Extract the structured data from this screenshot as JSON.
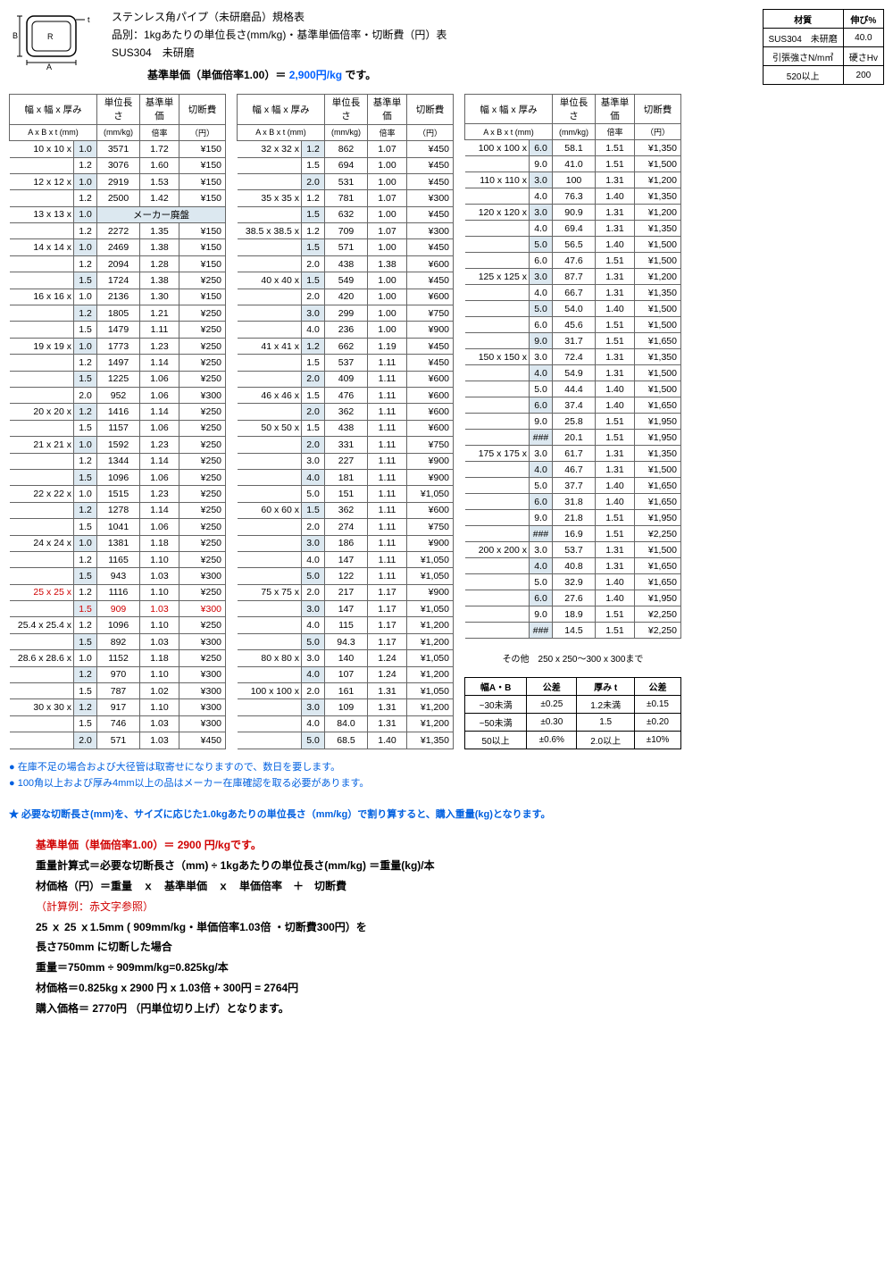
{
  "title1": "ステンレス角パイプ（未研磨品）規格表",
  "title2": "品別：1kgあたりの単位長さ(mm/kg)・基準単価倍率・切断費（円）表",
  "title3": "SUS304　未研磨",
  "baseprice_label": "基準単価（単価倍率1.00）＝",
  "baseprice_value": "2,900円/kg",
  "baseprice_suffix": "です。",
  "mat": {
    "h1": "材質",
    "h2": "伸び%",
    "r1a": "SUS304　未研磨",
    "r1b": "40.0",
    "r2a": "引張強さN/m㎡",
    "r2b": "硬さHv",
    "r3a": "520以上",
    "r3b": "200"
  },
  "col_headers": {
    "h1": "幅 x 幅 x 厚み",
    "h2": "単位長さ",
    "h3": "基準単価",
    "h4": "切断費",
    "s1": "A x B x t (mm)",
    "s2": "(mm/kg)",
    "s3": "倍率",
    "s4": "（円）"
  },
  "maker_disc": "メーカー廃盤",
  "table1": [
    {
      "dim": "10 x 10 x",
      "t": "1.0",
      "len": "3571",
      "rate": "1.72",
      "cut": "¥150",
      "sh": 1,
      "first": 1
    },
    {
      "dim": "",
      "t": "1.2",
      "len": "3076",
      "rate": "1.60",
      "cut": "¥150"
    },
    {
      "dim": "12 x 12 x",
      "t": "1.0",
      "len": "2919",
      "rate": "1.53",
      "cut": "¥150",
      "sh": 1,
      "first": 1
    },
    {
      "dim": "",
      "t": "1.2",
      "len": "2500",
      "rate": "1.42",
      "cut": "¥150"
    },
    {
      "dim": "13 x 13 x",
      "t": "1.0",
      "disc": 1,
      "sh": 1,
      "first": 1
    },
    {
      "dim": "",
      "t": "1.2",
      "len": "2272",
      "rate": "1.35",
      "cut": "¥150"
    },
    {
      "dim": "14 x 14 x",
      "t": "1.0",
      "len": "2469",
      "rate": "1.38",
      "cut": "¥150",
      "sh": 1,
      "first": 1
    },
    {
      "dim": "",
      "t": "1.2",
      "len": "2094",
      "rate": "1.28",
      "cut": "¥150"
    },
    {
      "dim": "",
      "t": "1.5",
      "len": "1724",
      "rate": "1.38",
      "cut": "¥250",
      "sh": 1
    },
    {
      "dim": "16 x 16 x",
      "t": "1.0",
      "len": "2136",
      "rate": "1.30",
      "cut": "¥150",
      "first": 1
    },
    {
      "dim": "",
      "t": "1.2",
      "len": "1805",
      "rate": "1.21",
      "cut": "¥250",
      "sh": 1
    },
    {
      "dim": "",
      "t": "1.5",
      "len": "1479",
      "rate": "1.11",
      "cut": "¥250"
    },
    {
      "dim": "19 x 19 x",
      "t": "1.0",
      "len": "1773",
      "rate": "1.23",
      "cut": "¥250",
      "sh": 1,
      "first": 1
    },
    {
      "dim": "",
      "t": "1.2",
      "len": "1497",
      "rate": "1.14",
      "cut": "¥250"
    },
    {
      "dim": "",
      "t": "1.5",
      "len": "1225",
      "rate": "1.06",
      "cut": "¥250",
      "sh": 1
    },
    {
      "dim": "",
      "t": "2.0",
      "len": "952",
      "rate": "1.06",
      "cut": "¥300"
    },
    {
      "dim": "20 x 20 x",
      "t": "1.2",
      "len": "1416",
      "rate": "1.14",
      "cut": "¥250",
      "sh": 1,
      "first": 1
    },
    {
      "dim": "",
      "t": "1.5",
      "len": "1157",
      "rate": "1.06",
      "cut": "¥250"
    },
    {
      "dim": "21 x 21 x",
      "t": "1.0",
      "len": "1592",
      "rate": "1.23",
      "cut": "¥250",
      "sh": 1,
      "first": 1
    },
    {
      "dim": "",
      "t": "1.2",
      "len": "1344",
      "rate": "1.14",
      "cut": "¥250"
    },
    {
      "dim": "",
      "t": "1.5",
      "len": "1096",
      "rate": "1.06",
      "cut": "¥250",
      "sh": 1
    },
    {
      "dim": "22 x 22 x",
      "t": "1.0",
      "len": "1515",
      "rate": "1.23",
      "cut": "¥250",
      "first": 1
    },
    {
      "dim": "",
      "t": "1.2",
      "len": "1278",
      "rate": "1.14",
      "cut": "¥250",
      "sh": 1
    },
    {
      "dim": "",
      "t": "1.5",
      "len": "1041",
      "rate": "1.06",
      "cut": "¥250"
    },
    {
      "dim": "24 x 24 x",
      "t": "1.0",
      "len": "1381",
      "rate": "1.18",
      "cut": "¥250",
      "sh": 1,
      "first": 1
    },
    {
      "dim": "",
      "t": "1.2",
      "len": "1165",
      "rate": "1.10",
      "cut": "¥250"
    },
    {
      "dim": "",
      "t": "1.5",
      "len": "943",
      "rate": "1.03",
      "cut": "¥300",
      "sh": 1
    },
    {
      "dim": "25 x 25 x",
      "t": "1.2",
      "len": "1116",
      "rate": "1.10",
      "cut": "¥250",
      "red": 1,
      "first": 1
    },
    {
      "dim": "",
      "t": "1.5",
      "len": "909",
      "rate": "1.03",
      "cut": "¥300",
      "sh": 1,
      "red": 2
    },
    {
      "dim": "25.4 x 25.4 x",
      "t": "1.2",
      "len": "1096",
      "rate": "1.10",
      "cut": "¥250",
      "first": 1
    },
    {
      "dim": "",
      "t": "1.5",
      "len": "892",
      "rate": "1.03",
      "cut": "¥300",
      "sh": 1
    },
    {
      "dim": "28.6 x 28.6 x",
      "t": "1.0",
      "len": "1152",
      "rate": "1.18",
      "cut": "¥250",
      "first": 1
    },
    {
      "dim": "",
      "t": "1.2",
      "len": "970",
      "rate": "1.10",
      "cut": "¥300",
      "sh": 1
    },
    {
      "dim": "",
      "t": "1.5",
      "len": "787",
      "rate": "1.02",
      "cut": "¥300"
    },
    {
      "dim": "30 x 30 x",
      "t": "1.2",
      "len": "917",
      "rate": "1.10",
      "cut": "¥300",
      "sh": 1,
      "first": 1
    },
    {
      "dim": "",
      "t": "1.5",
      "len": "746",
      "rate": "1.03",
      "cut": "¥300"
    },
    {
      "dim": "",
      "t": "2.0",
      "len": "571",
      "rate": "1.03",
      "cut": "¥450",
      "sh": 1
    }
  ],
  "table2": [
    {
      "dim": "32 x 32 x",
      "t": "1.2",
      "len": "862",
      "rate": "1.07",
      "cut": "¥450",
      "sh": 1,
      "first": 1
    },
    {
      "dim": "",
      "t": "1.5",
      "len": "694",
      "rate": "1.00",
      "cut": "¥450"
    },
    {
      "dim": "",
      "t": "2.0",
      "len": "531",
      "rate": "1.00",
      "cut": "¥450",
      "sh": 1
    },
    {
      "dim": "35 x 35 x",
      "t": "1.2",
      "len": "781",
      "rate": "1.07",
      "cut": "¥300",
      "first": 1
    },
    {
      "dim": "",
      "t": "1.5",
      "len": "632",
      "rate": "1.00",
      "cut": "¥450",
      "sh": 1
    },
    {
      "dim": "38.5 x 38.5 x",
      "t": "1.2",
      "len": "709",
      "rate": "1.07",
      "cut": "¥300",
      "first": 1
    },
    {
      "dim": "",
      "t": "1.5",
      "len": "571",
      "rate": "1.00",
      "cut": "¥450",
      "sh": 1
    },
    {
      "dim": "",
      "t": "2.0",
      "len": "438",
      "rate": "1.38",
      "cut": "¥600"
    },
    {
      "dim": "40 x 40 x",
      "t": "1.5",
      "len": "549",
      "rate": "1.00",
      "cut": "¥450",
      "sh": 1,
      "first": 1
    },
    {
      "dim": "",
      "t": "2.0",
      "len": "420",
      "rate": "1.00",
      "cut": "¥600"
    },
    {
      "dim": "",
      "t": "3.0",
      "len": "299",
      "rate": "1.00",
      "cut": "¥750",
      "sh": 1
    },
    {
      "dim": "",
      "t": "4.0",
      "len": "236",
      "rate": "1.00",
      "cut": "¥900"
    },
    {
      "dim": "41 x 41 x",
      "t": "1.2",
      "len": "662",
      "rate": "1.19",
      "cut": "¥450",
      "sh": 1,
      "first": 1
    },
    {
      "dim": "",
      "t": "1.5",
      "len": "537",
      "rate": "1.11",
      "cut": "¥450"
    },
    {
      "dim": "",
      "t": "2.0",
      "len": "409",
      "rate": "1.11",
      "cut": "¥600",
      "sh": 1
    },
    {
      "dim": "46 x 46 x",
      "t": "1.5",
      "len": "476",
      "rate": "1.11",
      "cut": "¥600",
      "first": 1
    },
    {
      "dim": "",
      "t": "2.0",
      "len": "362",
      "rate": "1.11",
      "cut": "¥600",
      "sh": 1
    },
    {
      "dim": "50 x 50 x",
      "t": "1.5",
      "len": "438",
      "rate": "1.11",
      "cut": "¥600",
      "first": 1
    },
    {
      "dim": "",
      "t": "2.0",
      "len": "331",
      "rate": "1.11",
      "cut": "¥750",
      "sh": 1
    },
    {
      "dim": "",
      "t": "3.0",
      "len": "227",
      "rate": "1.11",
      "cut": "¥900"
    },
    {
      "dim": "",
      "t": "4.0",
      "len": "181",
      "rate": "1.11",
      "cut": "¥900",
      "sh": 1
    },
    {
      "dim": "",
      "t": "5.0",
      "len": "151",
      "rate": "1.11",
      "cut": "¥1,050"
    },
    {
      "dim": "60 x 60 x",
      "t": "1.5",
      "len": "362",
      "rate": "1.11",
      "cut": "¥600",
      "sh": 1,
      "first": 1
    },
    {
      "dim": "",
      "t": "2.0",
      "len": "274",
      "rate": "1.11",
      "cut": "¥750"
    },
    {
      "dim": "",
      "t": "3.0",
      "len": "186",
      "rate": "1.11",
      "cut": "¥900",
      "sh": 1
    },
    {
      "dim": "",
      "t": "4.0",
      "len": "147",
      "rate": "1.11",
      "cut": "¥1,050"
    },
    {
      "dim": "",
      "t": "5.0",
      "len": "122",
      "rate": "1.11",
      "cut": "¥1,050",
      "sh": 1
    },
    {
      "dim": "75 x 75 x",
      "t": "2.0",
      "len": "217",
      "rate": "1.17",
      "cut": "¥900",
      "first": 1
    },
    {
      "dim": "",
      "t": "3.0",
      "len": "147",
      "rate": "1.17",
      "cut": "¥1,050",
      "sh": 1
    },
    {
      "dim": "",
      "t": "4.0",
      "len": "115",
      "rate": "1.17",
      "cut": "¥1,200"
    },
    {
      "dim": "",
      "t": "5.0",
      "len": "94.3",
      "rate": "1.17",
      "cut": "¥1,200",
      "sh": 1
    },
    {
      "dim": "80 x 80 x",
      "t": "3.0",
      "len": "140",
      "rate": "1.24",
      "cut": "¥1,050",
      "first": 1
    },
    {
      "dim": "",
      "t": "4.0",
      "len": "107",
      "rate": "1.24",
      "cut": "¥1,200",
      "sh": 1
    },
    {
      "dim": "100 x 100 x",
      "t": "2.0",
      "len": "161",
      "rate": "1.31",
      "cut": "¥1,050",
      "first": 1
    },
    {
      "dim": "",
      "t": "3.0",
      "len": "109",
      "rate": "1.31",
      "cut": "¥1,200",
      "sh": 1
    },
    {
      "dim": "",
      "t": "4.0",
      "len": "84.0",
      "rate": "1.31",
      "cut": "¥1,200"
    },
    {
      "dim": "",
      "t": "5.0",
      "len": "68.5",
      "rate": "1.40",
      "cut": "¥1,350",
      "sh": 1
    }
  ],
  "table3": [
    {
      "dim": "100 x 100 x",
      "t": "6.0",
      "len": "58.1",
      "rate": "1.51",
      "cut": "¥1,350",
      "sh": 1,
      "first": 1
    },
    {
      "dim": "",
      "t": "9.0",
      "len": "41.0",
      "rate": "1.51",
      "cut": "¥1,500"
    },
    {
      "dim": "110 x 110 x",
      "t": "3.0",
      "len": "100",
      "rate": "1.31",
      "cut": "¥1,200",
      "sh": 1,
      "first": 1
    },
    {
      "dim": "",
      "t": "4.0",
      "len": "76.3",
      "rate": "1.40",
      "cut": "¥1,350"
    },
    {
      "dim": "120 x 120 x",
      "t": "3.0",
      "len": "90.9",
      "rate": "1.31",
      "cut": "¥1,200",
      "sh": 1,
      "first": 1
    },
    {
      "dim": "",
      "t": "4.0",
      "len": "69.4",
      "rate": "1.31",
      "cut": "¥1,350"
    },
    {
      "dim": "",
      "t": "5.0",
      "len": "56.5",
      "rate": "1.40",
      "cut": "¥1,500",
      "sh": 1
    },
    {
      "dim": "",
      "t": "6.0",
      "len": "47.6",
      "rate": "1.51",
      "cut": "¥1,500"
    },
    {
      "dim": "125 x 125 x",
      "t": "3.0",
      "len": "87.7",
      "rate": "1.31",
      "cut": "¥1,200",
      "sh": 1,
      "first": 1
    },
    {
      "dim": "",
      "t": "4.0",
      "len": "66.7",
      "rate": "1.31",
      "cut": "¥1,350"
    },
    {
      "dim": "",
      "t": "5.0",
      "len": "54.0",
      "rate": "1.40",
      "cut": "¥1,500",
      "sh": 1
    },
    {
      "dim": "",
      "t": "6.0",
      "len": "45.6",
      "rate": "1.51",
      "cut": "¥1,500"
    },
    {
      "dim": "",
      "t": "9.0",
      "len": "31.7",
      "rate": "1.51",
      "cut": "¥1,650",
      "sh": 1
    },
    {
      "dim": "150 x 150 x",
      "t": "3.0",
      "len": "72.4",
      "rate": "1.31",
      "cut": "¥1,350",
      "first": 1
    },
    {
      "dim": "",
      "t": "4.0",
      "len": "54.9",
      "rate": "1.31",
      "cut": "¥1,500",
      "sh": 1
    },
    {
      "dim": "",
      "t": "5.0",
      "len": "44.4",
      "rate": "1.40",
      "cut": "¥1,500"
    },
    {
      "dim": "",
      "t": "6.0",
      "len": "37.4",
      "rate": "1.40",
      "cut": "¥1,650",
      "sh": 1
    },
    {
      "dim": "",
      "t": "9.0",
      "len": "25.8",
      "rate": "1.51",
      "cut": "¥1,950"
    },
    {
      "dim": "",
      "t": "###",
      "len": "20.1",
      "rate": "1.51",
      "cut": "¥1,950",
      "sh": 1
    },
    {
      "dim": "175 x 175 x",
      "t": "3.0",
      "len": "61.7",
      "rate": "1.31",
      "cut": "¥1,350",
      "first": 1
    },
    {
      "dim": "",
      "t": "4.0",
      "len": "46.7",
      "rate": "1.31",
      "cut": "¥1,500",
      "sh": 1
    },
    {
      "dim": "",
      "t": "5.0",
      "len": "37.7",
      "rate": "1.40",
      "cut": "¥1,650"
    },
    {
      "dim": "",
      "t": "6.0",
      "len": "31.8",
      "rate": "1.40",
      "cut": "¥1,650",
      "sh": 1
    },
    {
      "dim": "",
      "t": "9.0",
      "len": "21.8",
      "rate": "1.51",
      "cut": "¥1,950"
    },
    {
      "dim": "",
      "t": "###",
      "len": "16.9",
      "rate": "1.51",
      "cut": "¥2,250",
      "sh": 1
    },
    {
      "dim": "200 x 200 x",
      "t": "3.0",
      "len": "53.7",
      "rate": "1.31",
      "cut": "¥1,500",
      "first": 1
    },
    {
      "dim": "",
      "t": "4.0",
      "len": "40.8",
      "rate": "1.31",
      "cut": "¥1,650",
      "sh": 1
    },
    {
      "dim": "",
      "t": "5.0",
      "len": "32.9",
      "rate": "1.40",
      "cut": "¥1,650"
    },
    {
      "dim": "",
      "t": "6.0",
      "len": "27.6",
      "rate": "1.40",
      "cut": "¥1,950",
      "sh": 1
    },
    {
      "dim": "",
      "t": "9.0",
      "len": "18.9",
      "rate": "1.51",
      "cut": "¥2,250"
    },
    {
      "dim": "",
      "t": "###",
      "len": "14.5",
      "rate": "1.51",
      "cut": "¥2,250",
      "sh": 1
    }
  ],
  "other_note": "その他　250 x 250～300 x 300まで",
  "tol": {
    "h1": "幅A・B",
    "h2": "公差",
    "h3": "厚み t",
    "h4": "公差",
    "rows": [
      [
        "~30未満",
        "±0.25",
        "1.2未満",
        "±0.15"
      ],
      [
        "~50未満",
        "±0.30",
        "1.5",
        "±0.20"
      ],
      [
        "50以上",
        "±0.6%",
        "2.0以上",
        "±10%"
      ]
    ]
  },
  "note1": "● 在庫不足の場合および大径管は取寄せになりますので、数日を要します。",
  "note2": "● 100角以上および厚み4mm以上の品はメーカー在庫確認を取る必要があります。",
  "note3": "★ 必要な切断長さ(mm)を、サイズに応じた1.0kgあたりの単位長さ（mm/kg）で割り算すると、購入重量(kg)となります。",
  "calc1": "基準単価（単価倍率1.00）＝ 2900 円/kgです。",
  "calc2": "重量計算式＝必要な切断長さ（mm) ÷ 1kgあたりの単位長さ(mm/kg) ＝重量(kg)/本",
  "calc3": "材価格（円）＝重量　ｘ　基準単価　ｘ　単価倍率　＋　切断費",
  "calc4": "（計算例：赤文字参照）",
  "calc5": "25 ｘ 25 ｘ1.5mm ( 909mm/kg・単価倍率1.03倍 ・切断費300円）を",
  "calc6": "長さ750mm に切断した場合",
  "calc7": "重量＝750mm ÷ 909mm/kg=0.825kg/本",
  "calc8": "材価格＝0.825kg x 2900 円 x 1.03倍 + 300円 = 2764円",
  "calc9": "購入価格＝ 2770円 （円単位切り上げ）となります。"
}
